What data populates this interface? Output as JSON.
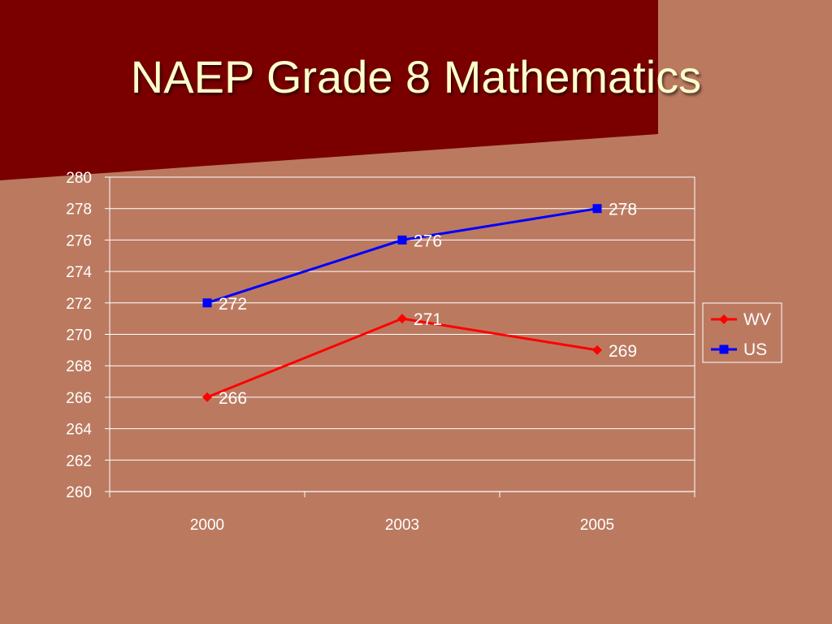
{
  "slide": {
    "title": "NAEP Grade 8 Mathematics"
  },
  "colors": {
    "background": "#bb7a60",
    "title_band": "#7a0000",
    "title_text": "#ffffcc",
    "gridline": "#ffffff"
  },
  "chart_data": {
    "type": "line",
    "title": "",
    "xlabel": "",
    "ylabel": "",
    "categories": [
      "2000",
      "2003",
      "2005"
    ],
    "ylim": [
      260,
      280
    ],
    "ytick_step": 2,
    "grid": true,
    "legend_position": "right",
    "series": [
      {
        "name": "WV",
        "values": [
          266,
          271,
          269
        ],
        "color": "#ff0000",
        "marker": "diamond"
      },
      {
        "name": "US",
        "values": [
          272,
          276,
          278
        ],
        "color": "#0000ff",
        "marker": "square"
      }
    ]
  }
}
